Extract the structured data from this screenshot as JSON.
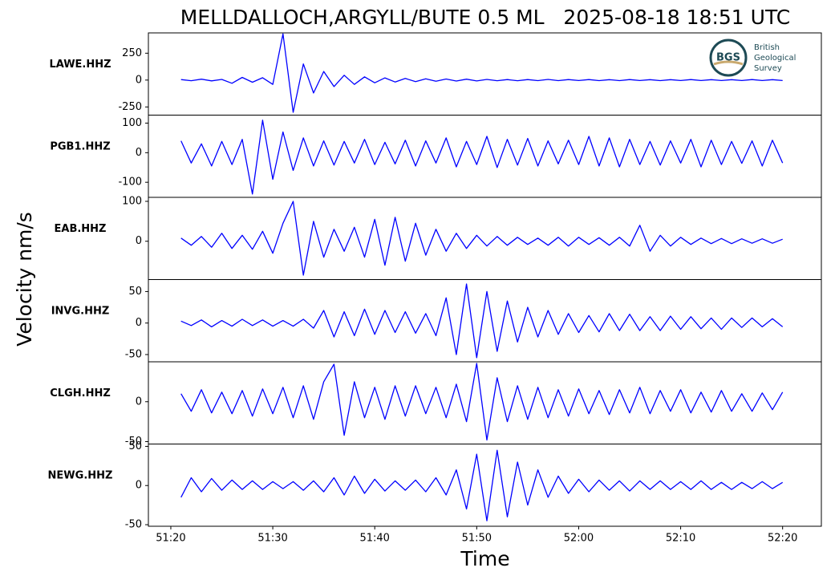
{
  "logo": {
    "abbr": "BGS",
    "lines": [
      "British",
      "Geological",
      "Survey"
    ]
  },
  "chart_data": {
    "type": "line",
    "title": "MELLDALLOCH,ARGYLL/BUTE 0.5 ML   2025-08-18 18:51 UTC",
    "x_label": "Time",
    "y_label": "Velocity nm/s",
    "x": [
      21,
      22,
      23,
      24,
      25,
      26,
      27,
      28,
      29,
      30,
      31,
      32,
      33,
      34,
      35,
      36,
      37,
      38,
      39,
      40,
      41,
      42,
      43,
      44,
      45,
      46,
      47,
      48,
      49,
      50,
      51,
      52,
      53,
      54,
      55,
      56,
      57,
      58,
      59,
      60,
      61,
      62,
      63,
      64,
      65,
      66,
      67,
      68,
      69,
      70,
      71,
      72,
      73,
      74,
      75,
      76,
      77,
      78,
      79,
      80
    ],
    "xlim": [
      17.8,
      83.8
    ],
    "xticks": [
      {
        "value": 20,
        "label": "51:20"
      },
      {
        "value": 30,
        "label": "51:30"
      },
      {
        "value": 40,
        "label": "51:40"
      },
      {
        "value": 50,
        "label": "51:50"
      },
      {
        "value": 60,
        "label": "52:00"
      },
      {
        "value": 70,
        "label": "52:10"
      },
      {
        "value": 80,
        "label": "52:20"
      }
    ],
    "series": [
      {
        "name": "LAWE.HHZ",
        "color": "#0000ff",
        "ylim": [
          -326,
          439
        ],
        "yticks": [
          250,
          0,
          -250
        ],
        "values": [
          5,
          -6,
          8,
          -7,
          6,
          -30,
          25,
          -20,
          22,
          -40,
          430,
          -300,
          150,
          -120,
          80,
          -60,
          45,
          -40,
          30,
          -25,
          20,
          -18,
          15,
          -14,
          12,
          -10,
          10,
          -9,
          8,
          -8,
          6,
          -6,
          5,
          -6,
          5,
          -5,
          6,
          -5,
          5,
          -4,
          5,
          -5,
          4,
          -5,
          5,
          -4,
          4,
          -5,
          4,
          -4,
          5,
          -4,
          4,
          -4,
          4,
          -4,
          5,
          -4,
          4,
          -4
        ]
      },
      {
        "name": "PGB1.HHZ",
        "color": "#0000ff",
        "ylim": [
          -151,
          127
        ],
        "yticks": [
          100,
          0,
          -100
        ],
        "values": [
          40,
          -35,
          30,
          -45,
          38,
          -40,
          45,
          -140,
          110,
          -90,
          70,
          -60,
          50,
          -45,
          40,
          -42,
          38,
          -35,
          45,
          -40,
          35,
          -38,
          42,
          -45,
          40,
          -35,
          50,
          -48,
          38,
          -40,
          55,
          -50,
          45,
          -42,
          48,
          -45,
          40,
          -38,
          42,
          -40,
          55,
          -45,
          50,
          -48,
          45,
          -40,
          38,
          -42,
          40,
          -35,
          45,
          -48,
          42,
          -40,
          38,
          -36,
          40,
          -45,
          42,
          -35
        ]
      },
      {
        "name": "EAB.HHZ",
        "color": "#0000ff",
        "ylim": [
          -96,
          110
        ],
        "yticks": [
          100,
          0
        ],
        "values": [
          8,
          -10,
          12,
          -15,
          20,
          -18,
          15,
          -20,
          25,
          -30,
          45,
          100,
          -85,
          50,
          -40,
          30,
          -25,
          35,
          -40,
          55,
          -60,
          60,
          -50,
          45,
          -35,
          30,
          -25,
          20,
          -18,
          15,
          -12,
          12,
          -10,
          10,
          -8,
          8,
          -10,
          10,
          -12,
          10,
          -8,
          9,
          -10,
          10,
          -12,
          40,
          -25,
          15,
          -12,
          10,
          -8,
          8,
          -6,
          7,
          -6,
          6,
          -5,
          6,
          -5,
          5
        ]
      },
      {
        "name": "INVG.HHZ",
        "color": "#0000ff",
        "ylim": [
          -61.5,
          69
        ],
        "yticks": [
          50,
          0,
          -50
        ],
        "values": [
          3,
          -4,
          5,
          -6,
          4,
          -5,
          6,
          -4,
          5,
          -5,
          4,
          -5,
          6,
          -8,
          20,
          -22,
          18,
          -20,
          22,
          -18,
          20,
          -15,
          18,
          -16,
          15,
          -20,
          40,
          -50,
          62,
          -55,
          50,
          -45,
          35,
          -30,
          25,
          -22,
          20,
          -18,
          15,
          -15,
          12,
          -14,
          15,
          -12,
          14,
          -12,
          10,
          -12,
          11,
          -10,
          10,
          -9,
          8,
          -10,
          8,
          -7,
          8,
          -6,
          7,
          -6
        ]
      },
      {
        "name": "CLGH.HHZ",
        "color": "#0000ff",
        "ylim": [
          -53,
          50
        ],
        "yticks": [
          0,
          -50
        ],
        "values": [
          10,
          -12,
          15,
          -14,
          12,
          -15,
          14,
          -18,
          16,
          -15,
          18,
          -20,
          20,
          -22,
          25,
          47,
          -42,
          25,
          -20,
          18,
          -22,
          20,
          -18,
          20,
          -15,
          18,
          -20,
          22,
          -25,
          48,
          -48,
          30,
          -25,
          20,
          -22,
          18,
          -20,
          15,
          -18,
          16,
          -15,
          14,
          -16,
          15,
          -14,
          18,
          -15,
          14,
          -12,
          15,
          -14,
          12,
          -13,
          14,
          -12,
          10,
          -12,
          11,
          -10,
          12
        ]
      },
      {
        "name": "NEWG.HHZ",
        "color": "#0000ff",
        "ylim": [
          -52,
          53
        ],
        "yticks": [
          50,
          0,
          -50
        ],
        "values": [
          -15,
          10,
          -8,
          9,
          -6,
          7,
          -5,
          6,
          -5,
          5,
          -4,
          5,
          -6,
          6,
          -8,
          10,
          -12,
          12,
          -10,
          8,
          -7,
          6,
          -6,
          7,
          -8,
          10,
          -12,
          20,
          -30,
          40,
          -45,
          45,
          -40,
          30,
          -25,
          20,
          -15,
          12,
          -10,
          8,
          -8,
          7,
          -6,
          6,
          -7,
          6,
          -5,
          6,
          -5,
          5,
          -5,
          6,
          -5,
          4,
          -5,
          4,
          -4,
          5,
          -4,
          4
        ]
      }
    ]
  }
}
